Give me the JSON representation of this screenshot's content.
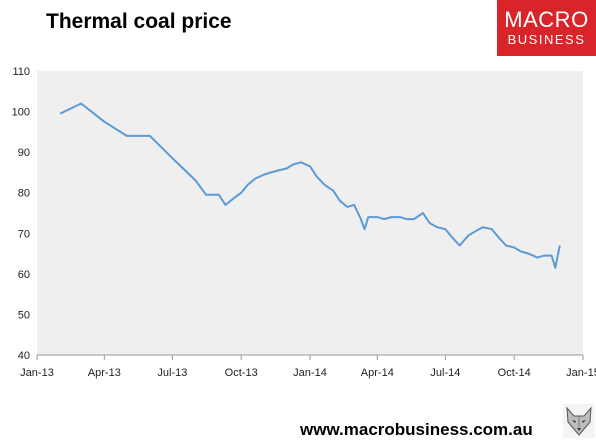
{
  "title": "Thermal coal price",
  "logo": {
    "line1": "MACRO",
    "line2": "BUSINESS",
    "color": "#d9252a"
  },
  "footer": {
    "url": "www.macrobusiness.com.au"
  },
  "mascot_icon": "wolf-head-icon",
  "chart_data": {
    "type": "line",
    "title": "Thermal coal price",
    "xlabel": "",
    "ylabel": "",
    "ylim": [
      40,
      110
    ],
    "y_ticks": [
      40,
      50,
      60,
      70,
      80,
      90,
      100,
      110
    ],
    "x_ticks": [
      "Jan-13",
      "Apr-13",
      "Jul-13",
      "Oct-13",
      "Jan-14",
      "Apr-14",
      "Jul-14",
      "Oct-14",
      "Jan-15"
    ],
    "x_range": [
      "2013-01-01",
      "2015-01-01"
    ],
    "grid": false,
    "legend": "none",
    "line_color": "#5b9bd5",
    "plot_background": "#efefef",
    "series": [
      {
        "x": [
          "2013-02-01",
          "2013-03-01",
          "2013-04-01",
          "2013-05-01",
          "2013-06-01",
          "2013-07-01",
          "2013-08-01",
          "2013-08-15",
          "2013-09-01",
          "2013-09-10",
          "2013-09-20",
          "2013-10-01",
          "2013-10-10",
          "2013-10-20",
          "2013-11-01",
          "2013-11-10",
          "2013-11-20",
          "2013-12-01",
          "2013-12-10",
          "2013-12-20",
          "2014-01-01",
          "2014-01-10",
          "2014-01-20",
          "2014-02-01",
          "2014-02-10",
          "2014-02-20",
          "2014-03-01",
          "2014-03-10",
          "2014-03-15",
          "2014-03-20",
          "2014-04-01",
          "2014-04-10",
          "2014-04-20",
          "2014-05-01",
          "2014-05-10",
          "2014-05-20",
          "2014-06-01",
          "2014-06-10",
          "2014-06-20",
          "2014-07-01",
          "2014-07-10",
          "2014-07-20",
          "2014-08-01",
          "2014-08-10",
          "2014-08-20",
          "2014-09-01",
          "2014-09-10",
          "2014-09-20",
          "2014-10-01",
          "2014-10-10",
          "2014-10-20",
          "2014-11-01",
          "2014-11-10",
          "2014-11-20",
          "2014-11-25",
          "2014-12-01"
        ],
        "y": [
          99.5,
          102,
          97.5,
          94,
          94,
          88.5,
          83,
          79.5,
          79.5,
          77,
          78.5,
          80,
          82,
          83.5,
          84.5,
          85,
          85.5,
          86,
          87,
          87.5,
          86.5,
          84,
          82,
          80.5,
          78,
          76.5,
          77,
          73.5,
          71,
          74,
          74,
          73.5,
          74,
          74,
          73.5,
          73.5,
          75,
          72.5,
          71.5,
          71,
          69,
          67,
          69.5,
          70.5,
          71.5,
          71,
          69,
          67,
          66.5,
          65.5,
          65,
          64,
          64.5,
          64.5,
          61.5,
          67
        ]
      }
    ]
  }
}
